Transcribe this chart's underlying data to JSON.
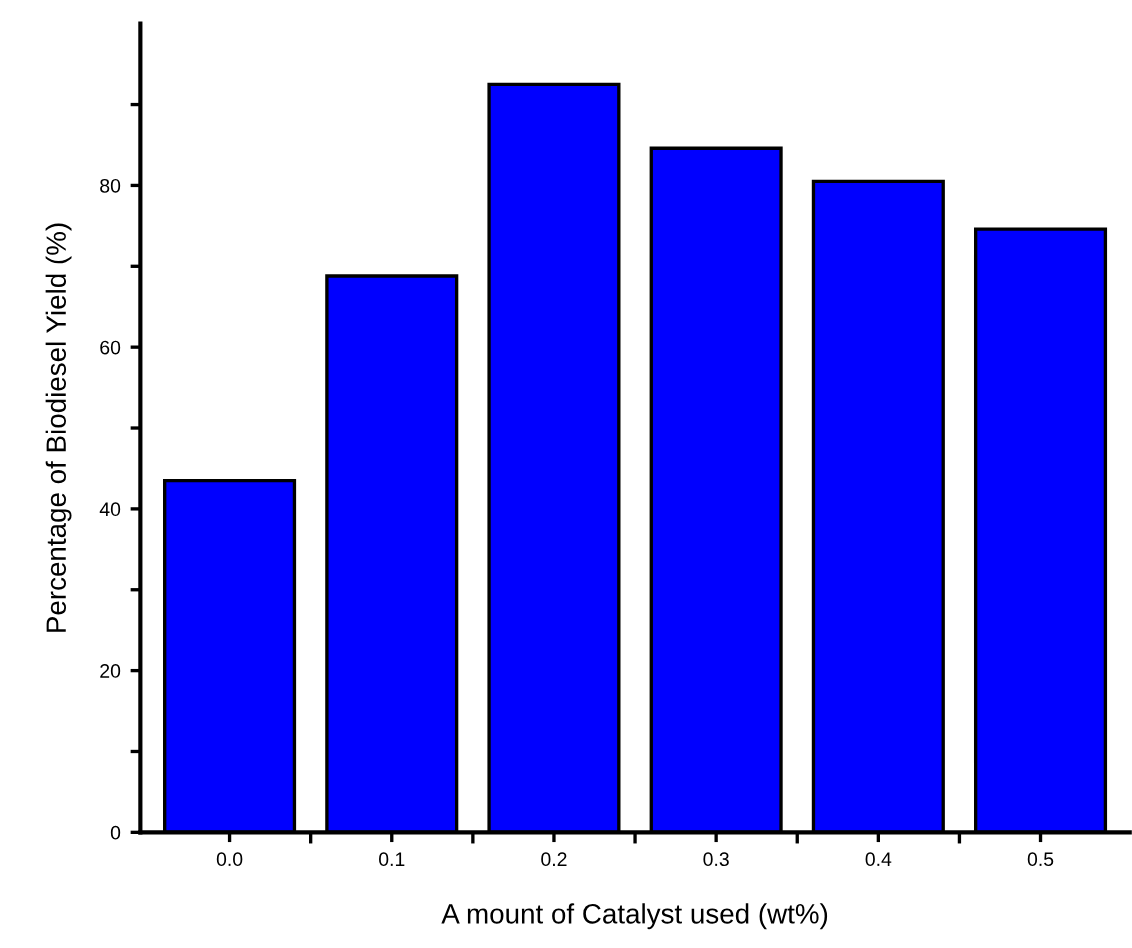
{
  "chart_data": {
    "type": "bar",
    "xlabel": "A mount of Catalyst used (wt%)",
    "ylabel": "Percentage of Biodiesel Yield (%)",
    "categories": [
      "0.0",
      "0.1",
      "0.2",
      "0.3",
      "0.4",
      "0.5"
    ],
    "values": [
      43.5,
      68.8,
      92.5,
      84.6,
      80.5,
      74.6
    ],
    "color": "#0000ff",
    "ylim": [
      0,
      100
    ],
    "yticks": [
      0,
      {
        "value": 10,
        "label": null
      },
      20,
      {
        "value": 30,
        "label": null
      },
      40,
      {
        "value": 50,
        "label": null
      },
      60,
      {
        "value": 70,
        "label": null
      },
      80,
      {
        "value": 90,
        "label": null
      }
    ],
    "grid": false
  }
}
